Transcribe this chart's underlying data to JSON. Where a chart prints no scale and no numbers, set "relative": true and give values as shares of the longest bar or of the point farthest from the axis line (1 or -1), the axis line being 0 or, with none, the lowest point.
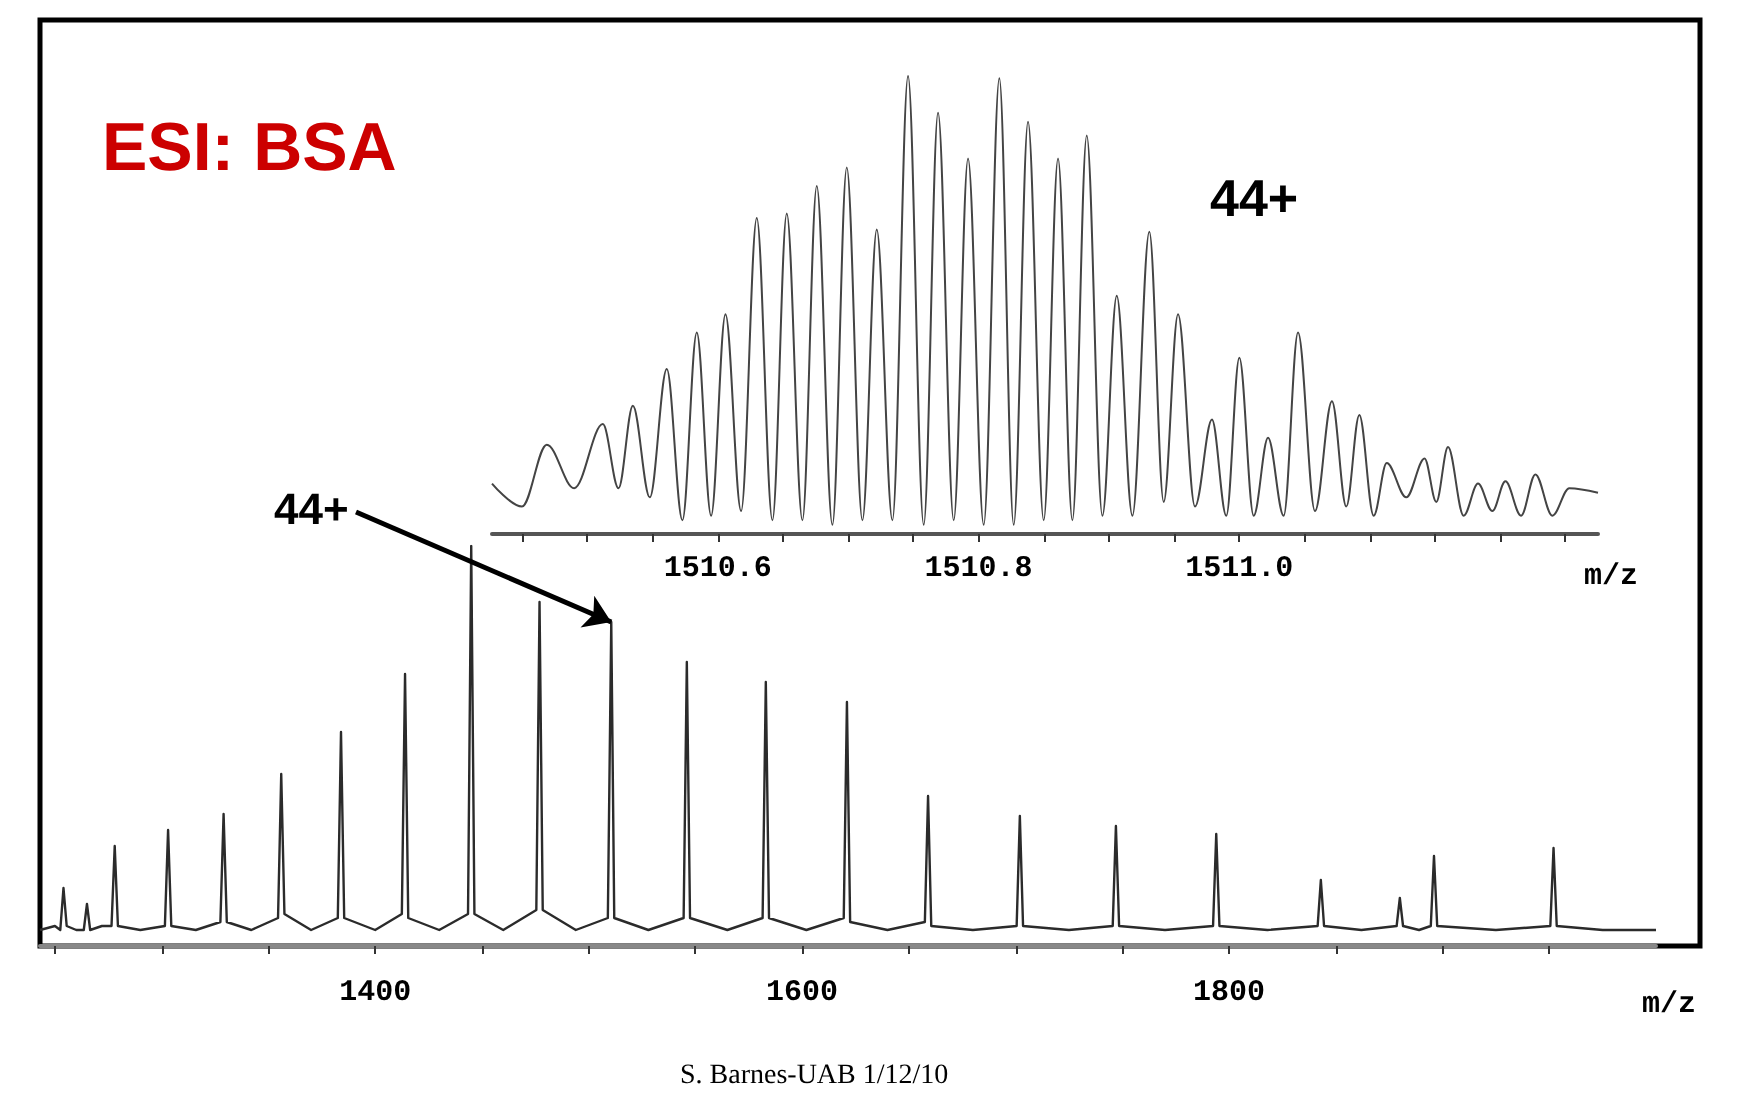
{
  "chart_data": [
    {
      "type": "line",
      "title": "ESI: BSA",
      "xlabel": "m/z",
      "relative": true,
      "tick_labels": "x",
      "grid": false,
      "marker": "none",
      "xlim": [
        1243,
        2000
      ],
      "xticks": [
        {
          "value": 1250,
          "label": null
        },
        {
          "value": 1300,
          "label": null
        },
        {
          "value": 1350,
          "label": null
        },
        1400,
        {
          "value": 1450,
          "label": null
        },
        {
          "value": 1500,
          "label": null
        },
        {
          "value": 1550,
          "label": null
        },
        1600,
        {
          "value": 1650,
          "label": null
        },
        {
          "value": 1700,
          "label": null
        },
        {
          "value": 1750,
          "label": null
        },
        1800,
        {
          "value": 1850,
          "label": null
        },
        {
          "value": 1900,
          "label": null
        },
        {
          "value": 1950,
          "label": null
        }
      ],
      "annotations": [
        {
          "text": "44+",
          "x": 1510.6,
          "y": 0.81
        },
        "S. Barnes-UAB 1/12/10"
      ],
      "series": [
        {
          "color": "#2b2b2b",
          "x": [
            1243,
            1250,
            1252.5,
            1254,
            1255.5,
            1260,
            1263.5,
            1265,
            1266.5,
            1272,
            1276.5,
            1278,
            1279.5,
            1290,
            1301.5,
            1303,
            1304.5,
            1316,
            1327.5,
            1329,
            1330.5,
            1342,
            1354.5,
            1356,
            1357.5,
            1370,
            1382.5,
            1384,
            1385.5,
            1400,
            1412.5,
            1414,
            1415.5,
            1430,
            1443.5,
            1445,
            1446.5,
            1460,
            1475.5,
            1477,
            1478.5,
            1494,
            1509,
            1510.6,
            1512,
            1528,
            1544.5,
            1546,
            1547.5,
            1565,
            1581.5,
            1583,
            1584.5,
            1602,
            1619.5,
            1621,
            1622.5,
            1640,
            1657.5,
            1659,
            1660.5,
            1680,
            1700.5,
            1702,
            1703.5,
            1725,
            1745.5,
            1747,
            1748.5,
            1770,
            1792.5,
            1794,
            1795.5,
            1818,
            1841.5,
            1843,
            1844.5,
            1862,
            1878.5,
            1880,
            1881.5,
            1889,
            1894.5,
            1896,
            1897.5,
            1925,
            1950.5,
            1952,
            1953.5,
            1975,
            2000
          ],
          "values": [
            0.04,
            0.05,
            0.04,
            0.145,
            0.05,
            0.04,
            0.04,
            0.105,
            0.04,
            0.05,
            0.05,
            0.25,
            0.05,
            0.04,
            0.05,
            0.29,
            0.05,
            0.04,
            0.06,
            0.33,
            0.06,
            0.04,
            0.07,
            0.43,
            0.08,
            0.04,
            0.07,
            0.535,
            0.07,
            0.04,
            0.08,
            0.68,
            0.07,
            0.04,
            0.08,
            1,
            0.08,
            0.04,
            0.09,
            0.86,
            0.09,
            0.04,
            0.07,
            0.81,
            0.07,
            0.04,
            0.07,
            0.71,
            0.07,
            0.04,
            0.07,
            0.66,
            0.07,
            0.04,
            0.07,
            0.61,
            0.06,
            0.04,
            0.06,
            0.375,
            0.05,
            0.04,
            0.05,
            0.325,
            0.05,
            0.04,
            0.05,
            0.3,
            0.05,
            0.04,
            0.05,
            0.28,
            0.05,
            0.04,
            0.05,
            0.165,
            0.05,
            0.04,
            0.05,
            0.12,
            0.05,
            0.04,
            0.05,
            0.225,
            0.05,
            0.04,
            0.05,
            0.245,
            0.05,
            0.04,
            0.04
          ]
        }
      ]
    },
    {
      "type": "line",
      "xlabel": "m/z",
      "relative": true,
      "tick_labels": "x",
      "grid": false,
      "marker": "none",
      "xlim": [
        1510.427,
        1511.275
      ],
      "xticks": [
        {
          "value": 1510.45,
          "label": null
        },
        {
          "value": 1510.5,
          "label": null
        },
        {
          "value": 1510.55,
          "label": null
        },
        {
          "value": 1510.6,
          "label": "1510.6"
        },
        {
          "value": 1510.65,
          "label": null
        },
        {
          "value": 1510.7,
          "label": null
        },
        {
          "value": 1510.75,
          "label": null
        },
        {
          "value": 1510.8,
          "label": "1510.8"
        },
        {
          "value": 1510.85,
          "label": null
        },
        {
          "value": 1510.9,
          "label": null
        },
        {
          "value": 1510.95,
          "label": null
        },
        {
          "value": 1511.0,
          "label": "1511.0"
        },
        {
          "value": 1511.05,
          "label": null
        },
        {
          "value": 1511.1,
          "label": null
        },
        {
          "value": 1511.15,
          "label": null
        },
        {
          "value": 1511.2,
          "label": null
        },
        {
          "value": 1511.25,
          "label": null
        }
      ],
      "annotations": [
        "44+"
      ],
      "series": [
        {
          "color": "#444444",
          "x": [
            1510.427,
            1510.45,
            1510.469,
            1510.49,
            1510.512,
            1510.524,
            1510.535,
            1510.548,
            1510.561,
            1510.573,
            1510.584,
            1510.595,
            1510.606,
            1510.618,
            1510.63,
            1510.642,
            1510.653,
            1510.665,
            1510.676,
            1510.688,
            1510.699,
            1510.711,
            1510.722,
            1510.734,
            1510.746,
            1510.758,
            1510.769,
            1510.781,
            1510.792,
            1510.804,
            1510.816,
            1510.827,
            1510.838,
            1510.85,
            1510.861,
            1510.872,
            1510.883,
            1510.895,
            1510.906,
            1510.918,
            1510.931,
            1510.942,
            1510.953,
            1510.966,
            1510.979,
            1510.99,
            1511.0,
            1511.011,
            1511.022,
            1511.034,
            1511.045,
            1511.058,
            1511.071,
            1511.082,
            1511.092,
            1511.103,
            1511.113,
            1511.128,
            1511.142,
            1511.151,
            1511.16,
            1511.172,
            1511.183,
            1511.194,
            1511.204,
            1511.216,
            1511.227,
            1511.24,
            1511.253,
            1511.275
          ],
          "values": [
            0.11,
            0.06,
            0.195,
            0.1,
            0.24,
            0.1,
            0.28,
            0.08,
            0.36,
            0.03,
            0.44,
            0.04,
            0.48,
            0.05,
            0.69,
            0.03,
            0.7,
            0.03,
            0.76,
            0.02,
            0.8,
            0.03,
            0.665,
            0.03,
            1,
            0.02,
            0.92,
            0.03,
            0.82,
            0.02,
            0.995,
            0.02,
            0.9,
            0.03,
            0.82,
            0.03,
            0.87,
            0.04,
            0.52,
            0.04,
            0.66,
            0.07,
            0.48,
            0.06,
            0.25,
            0.04,
            0.385,
            0.04,
            0.21,
            0.04,
            0.44,
            0.05,
            0.29,
            0.06,
            0.26,
            0.04,
            0.155,
            0.08,
            0.165,
            0.07,
            0.19,
            0.04,
            0.11,
            0.05,
            0.115,
            0.04,
            0.13,
            0.04,
            0.1,
            0.09
          ]
        }
      ]
    }
  ]
}
